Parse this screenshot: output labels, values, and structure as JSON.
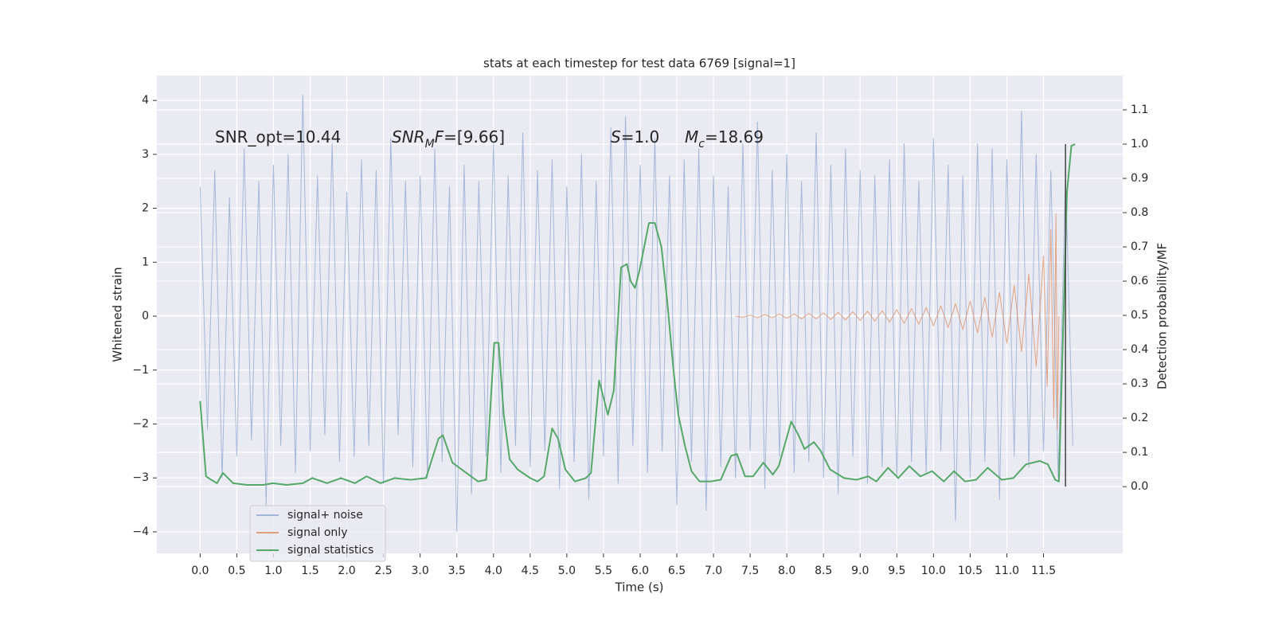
{
  "chart_data": {
    "type": "line",
    "title": "stats at each timestep for test data 6769 [signal=1]",
    "x_label": "Time (s)",
    "y_label": "Whitened strain",
    "y2_label": "Detection probability/MF",
    "xlim": [
      -0.59,
      12.58
    ],
    "ylim": [
      -4.4,
      4.46
    ],
    "y2lim": [
      -0.195,
      1.2
    ],
    "xticks": [
      {
        "value": 0,
        "label": "0.0"
      },
      {
        "value": 0.5,
        "label": "0.5"
      },
      {
        "value": 1,
        "label": "1.0"
      },
      {
        "value": 1.5,
        "label": "1.5"
      },
      {
        "value": 2,
        "label": "2.0"
      },
      {
        "value": 2.5,
        "label": "2.5"
      },
      {
        "value": 3,
        "label": "3.0"
      },
      {
        "value": 3.5,
        "label": "3.5"
      },
      {
        "value": 4,
        "label": "4.0"
      },
      {
        "value": 4.5,
        "label": "4.5"
      },
      {
        "value": 5,
        "label": "5.0"
      },
      {
        "value": 5.5,
        "label": "5.5"
      },
      {
        "value": 6,
        "label": "6.0"
      },
      {
        "value": 6.5,
        "label": "6.5"
      },
      {
        "value": 7,
        "label": "7.0"
      },
      {
        "value": 7.5,
        "label": "7.5"
      },
      {
        "value": 8,
        "label": "8.0"
      },
      {
        "value": 8.5,
        "label": "8.5"
      },
      {
        "value": 9,
        "label": "9.0"
      },
      {
        "value": 9.5,
        "label": "9.5"
      },
      {
        "value": 10,
        "label": "10.0"
      },
      {
        "value": 10.5,
        "label": "10.5"
      },
      {
        "value": 11,
        "label": "11.0"
      },
      {
        "value": 11.5,
        "label": "11.5"
      }
    ],
    "yticks": [
      {
        "value": -4,
        "label": "−4"
      },
      {
        "value": -3,
        "label": "−3"
      },
      {
        "value": -2,
        "label": "−2"
      },
      {
        "value": -1,
        "label": "−1"
      },
      0,
      1,
      2,
      3,
      4
    ],
    "y2ticks": [
      {
        "value": 0,
        "label": "0.0"
      },
      {
        "value": 0.1,
        "label": "0.1"
      },
      {
        "value": 0.2,
        "label": "0.2"
      },
      {
        "value": 0.3,
        "label": "0.3"
      },
      {
        "value": 0.4,
        "label": "0.4"
      },
      {
        "value": 0.5,
        "label": "0.5"
      },
      {
        "value": 0.6,
        "label": "0.6"
      },
      {
        "value": 0.7,
        "label": "0.7"
      },
      {
        "value": 0.8,
        "label": "0.8"
      },
      {
        "value": 0.9,
        "label": "0.9"
      },
      {
        "value": 1,
        "label": "1.0"
      },
      {
        "value": 1.1,
        "label": "1.1"
      }
    ],
    "grid": true,
    "legend": "lower left",
    "annotations": [
      [
        {
          "text": "SNR_opt=10.44"
        }
      ],
      [
        {
          "text": "SNR",
          "italic": true
        },
        {
          "text": "M",
          "italic": true,
          "sub": true
        },
        {
          "text": "F",
          "italic": true
        },
        {
          "text": "=[9.66]"
        }
      ],
      [
        {
          "text": "S",
          "italic": true
        },
        {
          "text": "=1.0"
        }
      ],
      [
        {
          "text": "M",
          "italic": true
        },
        {
          "text": "c",
          "italic": true,
          "sub": true
        },
        {
          "text": "=18.69"
        }
      ]
    ],
    "marker_x": 11.8,
    "marker_y2": [
      0,
      1.0
    ],
    "marker_color": "#444444",
    "series": [
      {
        "name": "signal+ noise",
        "color": "#8fa5d0",
        "x": [
          0,
          0.1,
          0.2,
          0.3,
          0.4,
          0.5,
          0.6,
          0.7,
          0.8,
          0.9,
          1,
          1.1,
          1.2,
          1.3,
          1.4,
          1.5,
          1.6,
          1.7,
          1.8,
          1.9,
          2,
          2.1,
          2.2,
          2.3,
          2.4,
          2.5,
          2.6,
          2.7,
          2.8,
          2.9,
          3,
          3.1,
          3.2,
          3.3,
          3.4,
          3.5,
          3.6,
          3.7,
          3.8,
          3.9,
          4,
          4.1,
          4.2,
          4.3,
          4.4,
          4.5,
          4.6,
          4.7,
          4.8,
          4.9,
          5,
          5.1,
          5.2,
          5.3,
          5.4,
          5.5,
          5.6,
          5.7,
          5.8,
          5.9,
          6,
          6.1,
          6.2,
          6.3,
          6.4,
          6.5,
          6.6,
          6.7,
          6.8,
          6.9,
          7,
          7.1,
          7.2,
          7.3,
          7.4,
          7.5,
          7.6,
          7.7,
          7.8,
          7.9,
          8,
          8.1,
          8.2,
          8.3,
          8.4,
          8.5,
          8.6,
          8.7,
          8.8,
          8.9,
          9,
          9.1,
          9.2,
          9.3,
          9.4,
          9.5,
          9.6,
          9.7,
          9.8,
          9.9,
          10,
          10.1,
          10.2,
          10.3,
          10.4,
          10.5,
          10.6,
          10.7,
          10.8,
          10.9,
          11,
          11.1,
          11.2,
          11.3,
          11.4,
          11.5,
          11.6,
          11.7,
          11.8,
          11.9
        ],
        "values": [
          2.4,
          -2.1,
          2.7,
          -3.0,
          2.2,
          -2.6,
          3.1,
          -2.3,
          2.5,
          -3.5,
          2.8,
          -2.4,
          3.0,
          -2.9,
          4.1,
          -2.5,
          2.6,
          -2.2,
          3.2,
          -2.7,
          2.3,
          -2.6,
          2.9,
          -2.4,
          2.7,
          -3.1,
          3.3,
          -2.2,
          2.5,
          -2.8,
          2.6,
          -3.0,
          3.1,
          -2.7,
          2.4,
          -4.0,
          2.8,
          -3.3,
          2.5,
          -2.6,
          3.2,
          -2.9,
          2.6,
          -2.4,
          3.4,
          -2.8,
          2.7,
          -2.5,
          2.9,
          -3.2,
          2.4,
          -2.7,
          3.0,
          -3.4,
          2.5,
          -2.6,
          3.5,
          -3.1,
          3.7,
          -2.4,
          2.8,
          -2.9,
          3.3,
          -2.5,
          2.6,
          -3.5,
          2.9,
          -2.7,
          3.1,
          -3.6,
          2.6,
          -2.8,
          2.4,
          -3.0,
          3.2,
          -2.5,
          3.6,
          -3.2,
          2.7,
          -2.6,
          3.0,
          -2.9,
          2.5,
          -2.7,
          3.4,
          -3.0,
          2.8,
          -3.3,
          3.1,
          -2.6,
          2.7,
          -3.1,
          2.6,
          -2.8,
          2.9,
          -3.0,
          3.2,
          -2.7,
          2.5,
          -2.9,
          3.3,
          -2.5,
          2.8,
          -3.8,
          2.6,
          -3.0,
          3.2,
          -2.7,
          3.1,
          -3.4,
          2.9,
          -2.6,
          3.8,
          -2.8,
          3.0,
          -2.5,
          2.7,
          -3.0,
          2.6,
          -2.4
        ]
      },
      {
        "name": "signal only",
        "color": "#dd8452",
        "x": [
          7.3,
          7.4,
          7.5,
          7.6,
          7.7,
          7.8,
          7.9,
          8,
          8.1,
          8.2,
          8.3,
          8.4,
          8.5,
          8.6,
          8.7,
          8.8,
          8.9,
          9,
          9.1,
          9.2,
          9.3,
          9.4,
          9.5,
          9.6,
          9.7,
          9.8,
          9.9,
          10,
          10.1,
          10.2,
          10.3,
          10.4,
          10.5,
          10.6,
          10.7,
          10.8,
          10.9,
          11,
          11.1,
          11.2,
          11.3,
          11.4,
          11.5,
          11.55,
          11.6,
          11.64,
          11.67,
          11.69,
          11.71
        ],
        "values": [
          0,
          -0.02,
          0.02,
          -0.03,
          0.03,
          -0.03,
          0.04,
          -0.04,
          0.04,
          -0.05,
          0.05,
          -0.05,
          0.06,
          -0.06,
          0.07,
          -0.07,
          0.08,
          -0.08,
          0.09,
          -0.09,
          0.1,
          -0.11,
          0.12,
          -0.13,
          0.14,
          -0.15,
          0.16,
          -0.18,
          0.19,
          -0.21,
          0.23,
          -0.25,
          0.28,
          -0.31,
          0.35,
          -0.39,
          0.44,
          -0.5,
          0.57,
          -0.66,
          0.78,
          -0.93,
          1.12,
          -1.3,
          1.6,
          -1.9,
          1.9,
          -2.1,
          0
        ]
      },
      {
        "name": "signal statistics",
        "color": "#55a868",
        "axis": "y2",
        "x": [
          0,
          0.08,
          0.15,
          0.23,
          0.31,
          0.45,
          0.64,
          0.86,
          0.99,
          1.18,
          1.4,
          1.53,
          1.73,
          1.92,
          2.11,
          2.27,
          2.46,
          2.65,
          2.87,
          3.08,
          3.25,
          3.31,
          3.44,
          3.63,
          3.79,
          3.9,
          4.01,
          4.07,
          4.14,
          4.22,
          4.33,
          4.5,
          4.6,
          4.69,
          4.8,
          4.88,
          4.98,
          5.11,
          5.26,
          5.33,
          5.44,
          5.56,
          5.64,
          5.74,
          5.82,
          5.87,
          5.93,
          5.99,
          6.12,
          6.2,
          6.29,
          6.37,
          6.45,
          6.52,
          6.61,
          6.7,
          6.81,
          6.96,
          7.1,
          7.24,
          7.32,
          7.43,
          7.54,
          7.68,
          7.81,
          7.89,
          8.06,
          8.16,
          8.24,
          8.37,
          8.46,
          8.59,
          8.78,
          8.95,
          9.11,
          9.22,
          9.38,
          9.52,
          9.67,
          9.82,
          9.98,
          10.14,
          10.28,
          10.43,
          10.58,
          10.74,
          10.93,
          11.09,
          11.26,
          11.45,
          11.56,
          11.66,
          11.71,
          11.82,
          11.88,
          11.93
        ],
        "values": [
          0.25,
          0.03,
          0.02,
          0.01,
          0.04,
          0.01,
          0.005,
          0.005,
          0.01,
          0.005,
          0.01,
          0.025,
          0.01,
          0.025,
          0.01,
          0.03,
          0.01,
          0.025,
          0.02,
          0.025,
          0.14,
          0.15,
          0.07,
          0.04,
          0.015,
          0.02,
          0.42,
          0.42,
          0.21,
          0.08,
          0.05,
          0.025,
          0.015,
          0.03,
          0.17,
          0.14,
          0.05,
          0.015,
          0.025,
          0.04,
          0.31,
          0.21,
          0.28,
          0.64,
          0.65,
          0.6,
          0.58,
          0.63,
          0.77,
          0.77,
          0.7,
          0.54,
          0.35,
          0.21,
          0.12,
          0.045,
          0.015,
          0.015,
          0.02,
          0.09,
          0.095,
          0.03,
          0.03,
          0.07,
          0.035,
          0.06,
          0.19,
          0.15,
          0.11,
          0.13,
          0.105,
          0.05,
          0.025,
          0.02,
          0.03,
          0.015,
          0.055,
          0.025,
          0.06,
          0.03,
          0.045,
          0.015,
          0.045,
          0.015,
          0.02,
          0.055,
          0.02,
          0.025,
          0.065,
          0.075,
          0.065,
          0.02,
          0.015,
          0.86,
          0.995,
          1.0
        ]
      }
    ]
  }
}
